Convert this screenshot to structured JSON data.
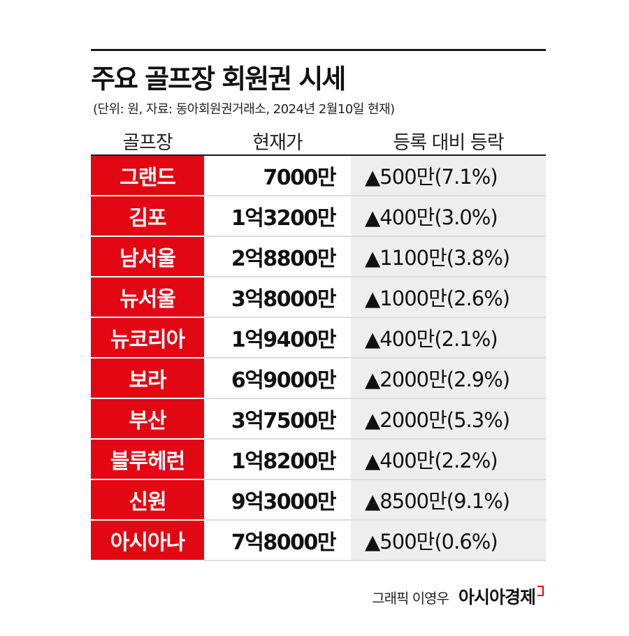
{
  "title": "주요 골프장 회원권 시세",
  "subtitle": "(단위: 원, 자료: 동아회원권거래소,  2024년 2월10일 현재)",
  "columns": {
    "name": "골프장",
    "price": "현재가",
    "change": "등록 대비 등락"
  },
  "colors": {
    "accent": "#e30613",
    "change_bg": "#eeeeee"
  },
  "chart_data": {
    "type": "table",
    "title": "주요 골프장 회원권 시세",
    "subtitle": "(단위: 원, 자료: 동아회원권거래소,  2024년 2월10일 현재)",
    "columns": [
      "골프장",
      "현재가",
      "등록 대비 등락"
    ],
    "rows": [
      {
        "name": "그랜드",
        "price": "7000만",
        "change": "▲500만(7.1%)"
      },
      {
        "name": "김포",
        "price": "1억3200만",
        "change": "▲400만(3.0%)"
      },
      {
        "name": "남서울",
        "price": "2억8800만",
        "change": "▲1100만(3.8%)"
      },
      {
        "name": "뉴서울",
        "price": "3억8000만",
        "change": "▲1000만(2.6%)"
      },
      {
        "name": "뉴코리아",
        "price": "1억9400만",
        "change": "▲400만(2.1%)"
      },
      {
        "name": "보라",
        "price": "6억9000만",
        "change": "▲2000만(2.9%)"
      },
      {
        "name": "부산",
        "price": "3억7500만",
        "change": "▲2000만(5.3%)"
      },
      {
        "name": "블루헤런",
        "price": "1억8200만",
        "change": "▲400만(2.2%)"
      },
      {
        "name": "신원",
        "price": "9억3000만",
        "change": "▲8500만(9.1%)"
      },
      {
        "name": "아시아나",
        "price": "7억8000만",
        "change": "▲500만(0.6%)"
      }
    ]
  },
  "footer": {
    "credit": "그래픽 이영우",
    "brand": "아시아경제"
  }
}
